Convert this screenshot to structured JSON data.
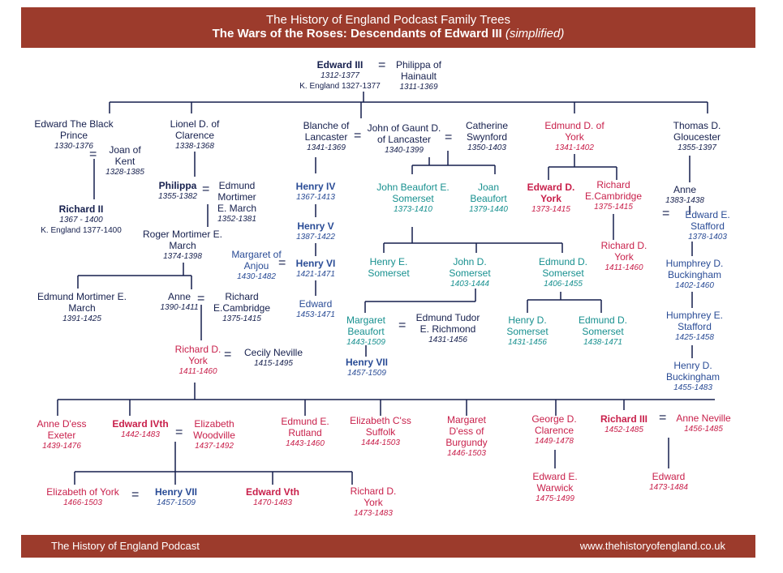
{
  "header": {
    "line1": "The History of England Podcast Family Trees",
    "line2": "The Wars of the Roses: Descendants of Edward III",
    "line2_suffix": "(simplified)"
  },
  "footer": {
    "left": "The History of England Podcast",
    "right": "www.thehistoryofengland.co.uk"
  },
  "equals": "=",
  "people": {
    "edward3": {
      "name": "Edward III",
      "dates": "1312-1377",
      "title": "K. England 1327-1377"
    },
    "philippa": {
      "name": "Philippa of Hainault",
      "dates": "1311-1369"
    },
    "black_prince": {
      "name": "Edward The Black Prince",
      "dates": "1330-1376"
    },
    "joan": {
      "name": "Joan of Kent",
      "dates": "1328-1385"
    },
    "richard2": {
      "name": "Richard II",
      "dates": "1367 - 1400",
      "title": "K. England 1377-1400"
    },
    "lionel": {
      "name": "Lionel D. of Clarence",
      "dates": "1338-1368"
    },
    "philippa2": {
      "name": "Philippa",
      "dates": "1355-1382"
    },
    "edmund_mortimer": {
      "name": "Edmund Mortimer E. March",
      "dates": "1352-1381"
    },
    "roger_mortimer": {
      "name": "Roger Mortimer E. March",
      "dates": "1374-1398"
    },
    "edmund_mortimer2": {
      "name": "Edmund Mortimer E. March",
      "dates": "1391-1425"
    },
    "anne": {
      "name": "Anne",
      "dates": "1390-1411"
    },
    "richard_cambridge": {
      "name": "Richard E.Cambridge",
      "dates": "1375-1415"
    },
    "richard_york": {
      "name": "Richard D. York",
      "dates": "1411-1460"
    },
    "cecily": {
      "name": "Cecily Neville",
      "dates": "1415-1495"
    },
    "blanche": {
      "name": "Blanche of Lancaster",
      "dates": "1341-1369"
    },
    "gaunt": {
      "name": "John of Gaunt D. of Lancaster",
      "dates": "1340-1399"
    },
    "catherine": {
      "name": "Catherine Swynford",
      "dates": "1350-1403"
    },
    "henry4": {
      "name": "Henry IV",
      "dates": "1367-1413"
    },
    "henry5": {
      "name": "Henry V",
      "dates": "1387-1422"
    },
    "margaret_anjou": {
      "name": "Margaret of Anjou",
      "dates": "1430-1482"
    },
    "henry6": {
      "name": "Henry VI",
      "dates": "1421-1471"
    },
    "edward_lancaster": {
      "name": "Edward",
      "dates": "1453-1471"
    },
    "john_beaufort": {
      "name": "John Beaufort E. Somerset",
      "dates": "1373-1410"
    },
    "joan_beaufort": {
      "name": "Joan Beaufort",
      "dates": "1379-1440"
    },
    "henry_somerset": {
      "name": "Henry E. Somerset",
      "dates": ""
    },
    "john_somerset": {
      "name": "John D. Somerset",
      "dates": "1403-1444"
    },
    "edmund_somerset": {
      "name": "Edmund D. Somerset",
      "dates": "1406-1455"
    },
    "margaret_beaufort": {
      "name": "Margaret Beaufort",
      "dates": "1443-1509"
    },
    "edmund_tudor": {
      "name": "Edmund Tudor E. Richmond",
      "dates": "1431-1456"
    },
    "henry7a": {
      "name": "Henry VII",
      "dates": "1457-1509"
    },
    "henry_somerset2": {
      "name": "Henry D. Somerset",
      "dates": "1431-1456"
    },
    "edmund_somerset2": {
      "name": "Edmund D. Somerset",
      "dates": "1438-1471"
    },
    "edmund_york": {
      "name": "Edmund D. of York",
      "dates": "1341-1402"
    },
    "edward_york": {
      "name": "Edward D. York",
      "dates": "1373-1415"
    },
    "richard_cambridge2": {
      "name": "Richard E.Cambridge",
      "dates": "1375-1415"
    },
    "richard_york2": {
      "name": "Richard D. York",
      "dates": "1411-1460"
    },
    "thomas": {
      "name": "Thomas D. Gloucester",
      "dates": "1355-1397"
    },
    "anne_g": {
      "name": "Anne",
      "dates": "1383-1438"
    },
    "edward_stafford": {
      "name": "Edward E. Stafford",
      "dates": "1378-1403"
    },
    "humphrey_buck": {
      "name": "Humphrey D. Buckingham",
      "dates": "1402-1460"
    },
    "humphrey_stafford": {
      "name": "Humphrey E. Stafford",
      "dates": "1425-1458"
    },
    "henry_buck": {
      "name": "Henry D. Buckingham",
      "dates": "1455-1483"
    },
    "anne_exeter": {
      "name": "Anne D'ess Exeter",
      "dates": "1439-1476"
    },
    "edward4": {
      "name": "Edward IVth",
      "dates": "1442-1483"
    },
    "elizabeth_w": {
      "name": "Elizabeth Woodville",
      "dates": "1437-1492"
    },
    "edmund_rutland": {
      "name": "Edmund E. Rutland",
      "dates": "1443-1460"
    },
    "elizabeth_suffolk": {
      "name": "Elizabeth C'ss Suffolk",
      "dates": "1444-1503"
    },
    "margaret_burgundy": {
      "name": "Margaret D'ess of Burgundy",
      "dates": "1446-1503"
    },
    "george": {
      "name": "George D. Clarence",
      "dates": "1449-1478"
    },
    "richard3": {
      "name": "Richard III",
      "dates": "1452-1485"
    },
    "anne_neville": {
      "name": "Anne Neville",
      "dates": "1456-1485"
    },
    "elizabeth_york": {
      "name": "Elizabeth of York",
      "dates": "1466-1503"
    },
    "henry7b": {
      "name": "Henry VII",
      "dates": "1457-1509"
    },
    "edward5": {
      "name": "Edward Vth",
      "dates": "1470-1483"
    },
    "richard_york3": {
      "name": "Richard D. York",
      "dates": "1473-1483"
    },
    "edward_warwick": {
      "name": "Edward E. Warwick",
      "dates": "1475-1499"
    },
    "edward_r3": {
      "name": "Edward",
      "dates": "1473-1484"
    }
  }
}
